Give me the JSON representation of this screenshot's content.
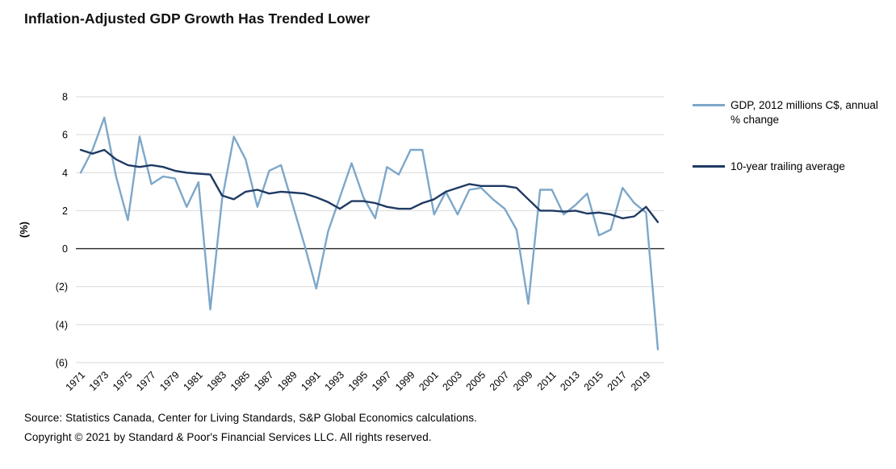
{
  "title": "Inflation-Adjusted GDP Growth Has Trended Lower",
  "footer": {
    "source": "Source: Statistics Canada, Center for Living Standards, S&P Global Economics calculations.",
    "copyright": "Copyright © 2021 by Standard & Poor's Financial Services LLC. All rights reserved."
  },
  "colors": {
    "gdp_line": "#7da7c9",
    "average_line": "#1f3a63",
    "gridline": "#d9d9d9",
    "zero_line": "#262626"
  },
  "chart_data": {
    "type": "line",
    "title": "Inflation-Adjusted GDP Growth Has Trended Lower",
    "xlabel": "",
    "ylabel": "(%)",
    "ylim": [
      -6,
      8
    ],
    "yticks": [
      8,
      6,
      4,
      2,
      0,
      -2,
      -4,
      -6
    ],
    "ytick_labels": [
      "8",
      "6",
      "4",
      "2",
      "0",
      "(2)",
      "(4)",
      "(6)"
    ],
    "grid": true,
    "legend_position": "right",
    "x": [
      1971,
      1972,
      1973,
      1974,
      1975,
      1976,
      1977,
      1978,
      1979,
      1980,
      1981,
      1982,
      1983,
      1984,
      1985,
      1986,
      1987,
      1988,
      1989,
      1990,
      1991,
      1992,
      1993,
      1994,
      1995,
      1996,
      1997,
      1998,
      1999,
      2000,
      2001,
      2002,
      2003,
      2004,
      2005,
      2006,
      2007,
      2008,
      2009,
      2010,
      2011,
      2012,
      2013,
      2014,
      2015,
      2016,
      2017,
      2018,
      2019,
      2020
    ],
    "xtick_labels": [
      "1971",
      "1973",
      "1975",
      "1977",
      "1979",
      "1981",
      "1983",
      "1985",
      "1987",
      "1989",
      "1991",
      "1993",
      "1995",
      "1997",
      "1999",
      "2001",
      "2003",
      "2005",
      "2007",
      "2009",
      "2011",
      "2013",
      "2015",
      "2017",
      "2019"
    ],
    "series": [
      {
        "name": "GDP, 2012 millions C$, annual % change",
        "color": "#7da7c9",
        "values": [
          4.0,
          5.2,
          6.9,
          3.8,
          1.5,
          5.9,
          3.4,
          3.8,
          3.7,
          2.2,
          3.5,
          -3.2,
          2.6,
          5.9,
          4.7,
          2.2,
          4.1,
          4.4,
          2.3,
          0.2,
          -2.1,
          0.9,
          2.7,
          4.5,
          2.7,
          1.6,
          4.3,
          3.9,
          5.2,
          5.2,
          1.8,
          3.0,
          1.8,
          3.1,
          3.2,
          2.6,
          2.1,
          1.0,
          -2.9,
          3.1,
          3.1,
          1.8,
          2.3,
          2.9,
          0.7,
          1.0,
          3.2,
          2.4,
          1.9,
          -5.3
        ]
      },
      {
        "name": "10-year trailing average",
        "color": "#1f3a63",
        "values": [
          5.2,
          5.0,
          5.2,
          4.7,
          4.4,
          4.3,
          4.4,
          4.3,
          4.1,
          4.0,
          3.95,
          3.9,
          2.8,
          2.6,
          3.0,
          3.1,
          2.9,
          3.0,
          2.95,
          2.9,
          2.7,
          2.45,
          2.1,
          2.5,
          2.5,
          2.4,
          2.2,
          2.1,
          2.1,
          2.4,
          2.6,
          3.0,
          3.2,
          3.4,
          3.3,
          3.3,
          3.3,
          3.2,
          2.6,
          2.0,
          2.0,
          1.95,
          2.0,
          1.85,
          1.9,
          1.8,
          1.6,
          1.7,
          2.2,
          1.4
        ]
      }
    ]
  }
}
